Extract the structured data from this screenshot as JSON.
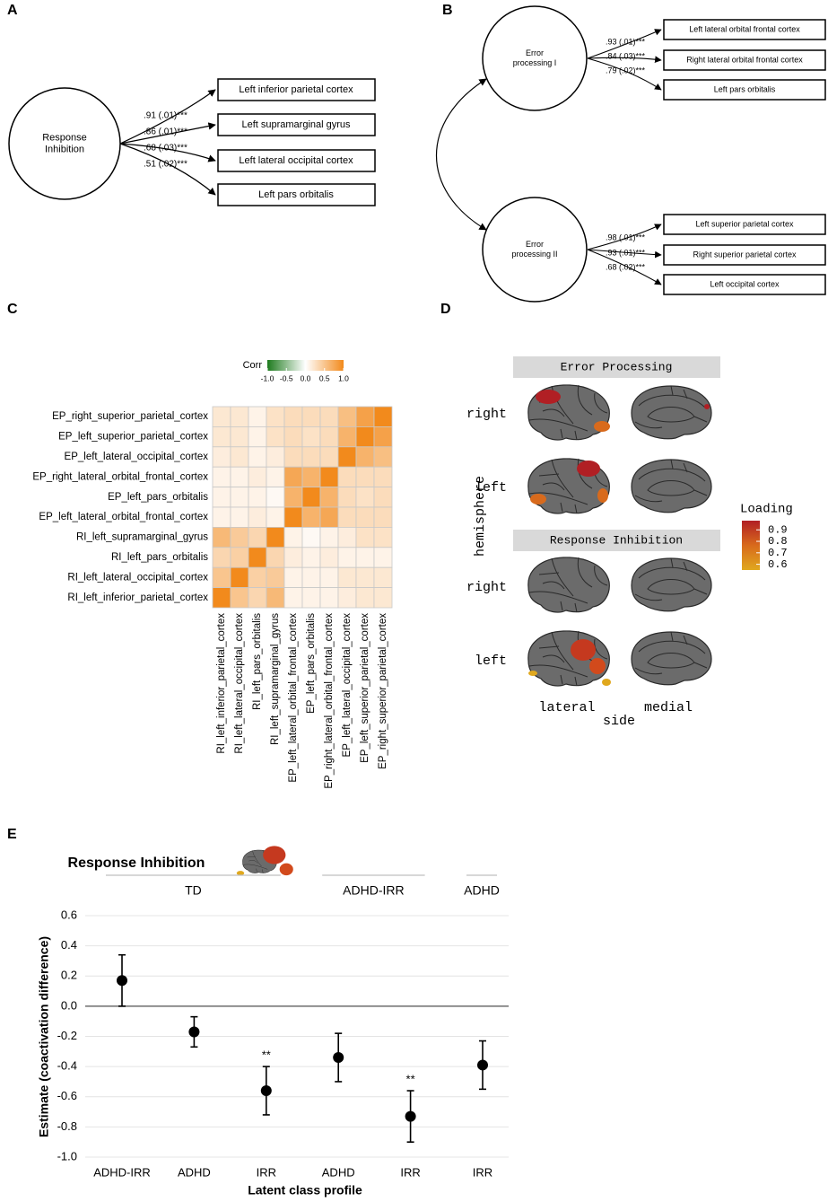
{
  "panel_a": {
    "label": "A",
    "latent": [
      "Response",
      "Inhibition"
    ],
    "indicators": [
      {
        "label": "Left inferior parietal cortex",
        "loading": ".91 (.01)***"
      },
      {
        "label": "Left supramarginal gyrus",
        "loading": ".86 (.01)***"
      },
      {
        "label": "Left lateral occipital cortex",
        "loading": ".68 (.03)***"
      },
      {
        "label": "Left pars orbitalis",
        "loading": ".51 (.02)***"
      }
    ]
  },
  "panel_b": {
    "label": "B",
    "factors": [
      {
        "latent": [
          "Error",
          "processing I"
        ],
        "indicators": [
          {
            "label": "Left lateral orbital frontal cortex",
            "loading": ".93 (.01)***"
          },
          {
            "label": "Right lateral orbital frontal cortex",
            "loading": ".84 (.03)***"
          },
          {
            "label": "Left pars orbitalis",
            "loading": ".79 (.02)***"
          }
        ]
      },
      {
        "latent": [
          "Error",
          "processing II"
        ],
        "indicators": [
          {
            "label": "Left superior parietal cortex",
            "loading": ".98 (.01)***"
          },
          {
            "label": "Right superior parietal cortex",
            "loading": ".93 (.01)***"
          },
          {
            "label": "Left occipital cortex",
            "loading": ".68 (.02)***"
          }
        ]
      }
    ]
  },
  "panel_c": {
    "label": "C",
    "chart_data": {
      "type": "heatmap",
      "legend_title": "Corr",
      "color_lim": [
        -1,
        1
      ],
      "colors": {
        "low": "#1e7b1e",
        "mid": "#ffffff",
        "high": "#f28a1c"
      },
      "legend_ticks": [
        {
          "value": -1,
          "label": "-1.0"
        },
        -0.5,
        {
          "value": 0,
          "label": "0.0"
        },
        0.5,
        {
          "value": 1,
          "label": "1.0"
        }
      ],
      "rows": [
        "EP_right_superior_parietal_cortex",
        "EP_left_superior_parietal_cortex",
        "EP_left_lateral_occipital_cortex",
        "EP_right_lateral_orbital_frontal_cortex",
        "EP_left_pars_orbitalis",
        "EP_left_lateral_orbital_frontal_cortex",
        "RI_left_supramarginal_gyrus",
        "RI_left_pars_orbitalis",
        "RI_left_lateral_occipital_cortex",
        "RI_left_inferior_parietal_cortex"
      ],
      "columns": [
        "RI_left_inferior_parietal_cortex",
        "RI_left_lateral_occipital_cortex",
        "RI_left_pars_orbitalis",
        "RI_left_supramarginal_gyrus",
        "EP_left_lateral_orbital_frontal_cortex",
        "EP_left_pars_orbitalis",
        "EP_right_lateral_orbital_frontal_cortex",
        "EP_left_lateral_occipital_cortex",
        "EP_left_superior_parietal_cortex",
        "EP_right_superior_parietal_cortex"
      ],
      "values": [
        [
          0.2,
          0.2,
          0.1,
          0.25,
          0.3,
          0.3,
          0.3,
          0.55,
          0.8,
          1
        ],
        [
          0.2,
          0.2,
          0.1,
          0.25,
          0.3,
          0.25,
          0.3,
          0.65,
          1,
          0.8
        ],
        [
          0.15,
          0.2,
          0.1,
          0.15,
          0.3,
          0.3,
          0.3,
          1,
          0.65,
          0.55
        ],
        [
          0.1,
          0.1,
          0.15,
          0.1,
          0.75,
          0.65,
          1,
          0.3,
          0.3,
          0.3
        ],
        [
          0.1,
          0.1,
          0.1,
          0.05,
          0.65,
          1,
          0.65,
          0.3,
          0.25,
          0.3
        ],
        [
          0.1,
          0.1,
          0.15,
          0.1,
          1,
          0.65,
          0.75,
          0.3,
          0.3,
          0.3
        ],
        [
          0.6,
          0.45,
          0.35,
          1,
          0.1,
          0.05,
          0.1,
          0.15,
          0.25,
          0.25
        ],
        [
          0.35,
          0.4,
          1,
          0.35,
          0.15,
          0.1,
          0.15,
          0.1,
          0.1,
          0.1
        ],
        [
          0.5,
          1,
          0.4,
          0.45,
          0.1,
          0.1,
          0.1,
          0.2,
          0.2,
          0.2
        ],
        [
          1,
          0.5,
          0.35,
          0.6,
          0.1,
          0.1,
          0.1,
          0.15,
          0.2,
          0.2
        ]
      ]
    }
  },
  "panel_d": {
    "label": "D",
    "facets": [
      "Error Processing",
      "Response Inhibition"
    ],
    "rows": [
      "right",
      "left"
    ],
    "columns": [
      "lateral",
      "medial"
    ],
    "y_label": "hemisphere",
    "x_label": "side",
    "legend_title": "Loading",
    "legend_lim": [
      0.55,
      0.98
    ],
    "legend_colors": [
      "#e0a81e",
      "#d86a1c",
      "#b11f24"
    ],
    "legend_ticks": [
      0.9,
      0.8,
      0.7,
      0.6
    ]
  },
  "panel_e": {
    "label": "E",
    "chart_data": {
      "type": "errorbar",
      "title": "Response Inhibition",
      "x_label": "Latent class profile",
      "y_label": "Estimate (coactivation difference)",
      "groups": [
        "TD",
        "TD",
        "TD",
        "ADHD-IRR",
        "ADHD-IRR",
        "ADHD"
      ],
      "categories": [
        "ADHD-IRR",
        "ADHD",
        "IRR",
        "ADHD",
        "IRR",
        "IRR"
      ],
      "values": [
        0.17,
        -0.17,
        -0.56,
        -0.34,
        -0.73,
        -0.39
      ],
      "errors": [
        0.17,
        0.1,
        0.16,
        0.16,
        0.17,
        0.16
      ],
      "significance": [
        null,
        null,
        "**",
        null,
        "**",
        null
      ],
      "color": "#000000",
      "ylim": [
        -1,
        0.6
      ],
      "yticks": [
        {
          "value": -1,
          "label": "-1.0"
        },
        -0.8,
        -0.6,
        -0.4,
        -0.2,
        {
          "value": 0,
          "label": "0.0"
        },
        0.2,
        0.4,
        0.6
      ],
      "grid": true
    }
  }
}
